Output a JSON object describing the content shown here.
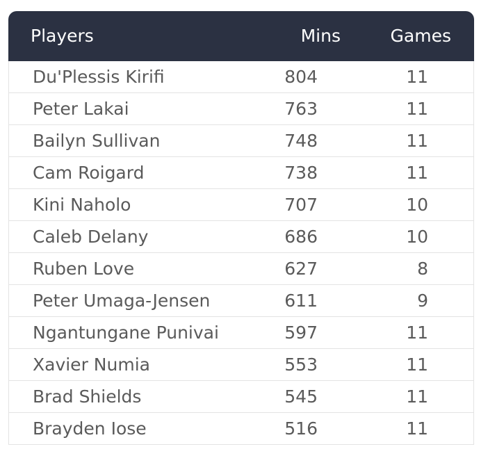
{
  "table": {
    "columns": [
      "Players",
      "Mins",
      "Games"
    ],
    "rows": [
      [
        "Du'Plessis Kirifi",
        804,
        11
      ],
      [
        "Peter Lakai",
        763,
        11
      ],
      [
        "Bailyn Sullivan",
        748,
        11
      ],
      [
        "Cam Roigard",
        738,
        11
      ],
      [
        "Kini Naholo",
        707,
        10
      ],
      [
        "Caleb Delany",
        686,
        10
      ],
      [
        "Ruben Love",
        627,
        8
      ],
      [
        "Peter Umaga-Jensen",
        611,
        9
      ],
      [
        "Ngantungane Punivai",
        597,
        11
      ],
      [
        "Xavier Numia",
        553,
        11
      ],
      [
        "Brad Shields",
        545,
        11
      ],
      [
        "Brayden Iose",
        516,
        11
      ]
    ]
  }
}
